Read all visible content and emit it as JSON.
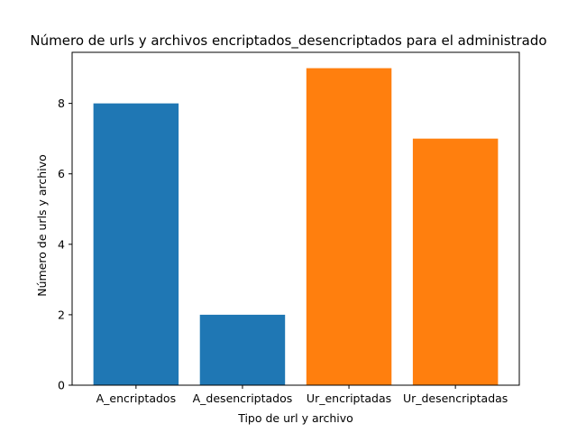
{
  "chart_data": {
    "type": "bar",
    "title": "Número de urls y archivos encriptados_desencriptados para el administrado",
    "xlabel": "Tipo de url y archivo",
    "ylabel": "Número de urls y archivo",
    "categories": [
      "A_encriptados",
      "A_desencriptados",
      "Ur_encriptadas",
      "Ur_desencriptadas"
    ],
    "values": [
      8,
      2,
      9,
      7
    ],
    "bar_colors": [
      "#1f77b4",
      "#1f77b4",
      "#ff7f0e",
      "#ff7f0e"
    ],
    "ylim": [
      0,
      9.45
    ],
    "yticks": [
      0,
      2,
      4,
      6,
      8
    ],
    "grid": false,
    "legend": "none"
  }
}
